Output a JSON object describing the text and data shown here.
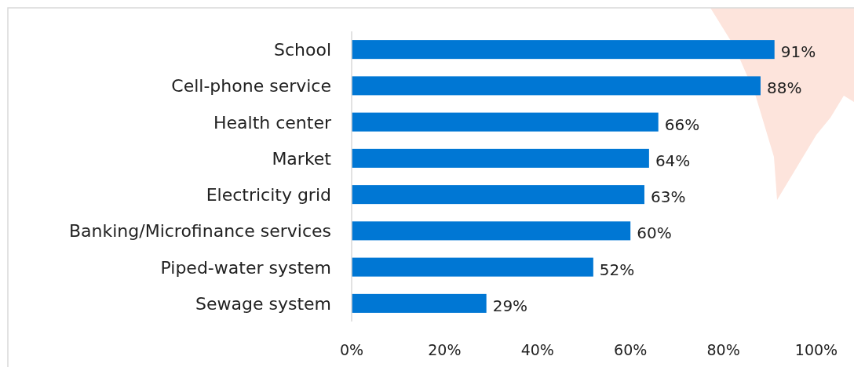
{
  "chart_data": {
    "type": "bar",
    "orientation": "horizontal",
    "categories": [
      "School",
      "Cell-phone service",
      "Health center",
      "Market",
      "Electricity grid",
      "Banking/Microfinance services",
      "Piped-water system",
      "Sewage system"
    ],
    "values": [
      91,
      88,
      66,
      64,
      63,
      60,
      52,
      29
    ],
    "value_labels": [
      "91%",
      "88%",
      "66%",
      "64%",
      "63%",
      "60%",
      "52%",
      "29%"
    ],
    "color": "#0077d4",
    "xlim": [
      0,
      100
    ],
    "xticks": [
      {
        "value": 0,
        "label": "0%"
      },
      {
        "value": 20,
        "label": "20%"
      },
      {
        "value": 40,
        "label": "40%"
      },
      {
        "value": 60,
        "label": "60%"
      },
      {
        "value": 80,
        "label": "80%"
      },
      {
        "value": 100,
        "label": "100%"
      }
    ],
    "grid": false
  }
}
